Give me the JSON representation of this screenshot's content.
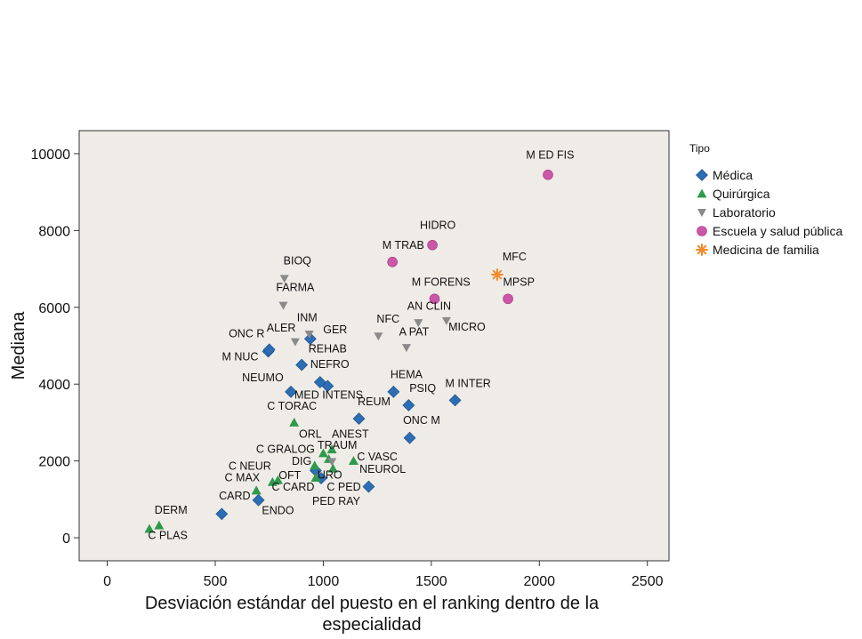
{
  "chart_data": {
    "type": "scatter",
    "xlabel_lines": [
      "Desviación estándar del puesto en el ranking dentro de la",
      "especialidad"
    ],
    "ylabel": "Mediana",
    "xlim": [
      -130,
      2600
    ],
    "ylim": [
      -600,
      10600
    ],
    "xticks": [
      0,
      500,
      1000,
      1500,
      2000,
      2500
    ],
    "yticks": [
      0,
      2000,
      4000,
      6000,
      8000,
      10000
    ],
    "grid": false,
    "legend_position": "right",
    "legend_title": "Tipo",
    "colors": {
      "plot_background": "#efece7",
      "Médica": "#2c6db3",
      "Quirúrgica": "#2e9a4c",
      "Laboratorio": "#8a8a8a",
      "Escuela y salud pública": "#cc56a8",
      "Medicina de familia": "#f08a2c"
    },
    "series": [
      {
        "name": "Médica",
        "marker": "diamond",
        "points": [
          {
            "label": "CARD",
            "x": 530,
            "y": 620
          },
          {
            "label": "ENDO",
            "x": 700,
            "y": 980
          },
          {
            "label": "M NUC",
            "x": 745,
            "y": 4850
          },
          {
            "label": "ONC R",
            "x": 750,
            "y": 4900
          },
          {
            "label": "NEUMO",
            "x": 850,
            "y": 3800
          },
          {
            "label": "NEFRO",
            "x": 900,
            "y": 4500
          },
          {
            "label": "GER",
            "x": 940,
            "y": 5180
          },
          {
            "label": "REHAB",
            "x": 985,
            "y": 4050
          },
          {
            "label": "MED INTENS",
            "x": 1020,
            "y": 3950
          },
          {
            "label": "REUM",
            "x": 1165,
            "y": 3100
          },
          {
            "label": "HEMA",
            "x": 1325,
            "y": 3800
          },
          {
            "label": "PSIQ",
            "x": 1395,
            "y": 3450
          },
          {
            "label": "M INTER",
            "x": 1610,
            "y": 3580
          },
          {
            "label": "ONC M",
            "x": 1400,
            "y": 2600
          },
          {
            "label": "NEUROL",
            "x": 1210,
            "y": 1330
          },
          {
            "label": "DIG",
            "x": 965,
            "y": 1750
          },
          {
            "label": "URO",
            "x": 990,
            "y": 1550
          }
        ]
      },
      {
        "name": "Quirúrgica",
        "marker": "triangle",
        "points": [
          {
            "label": "C PLAS",
            "x": 195,
            "y": 230
          },
          {
            "label": "DERM",
            "x": 240,
            "y": 320
          },
          {
            "label": "C MAX",
            "x": 690,
            "y": 1230
          },
          {
            "label": "C NEUR",
            "x": 765,
            "y": 1450
          },
          {
            "label": "OFT",
            "x": 790,
            "y": 1500
          },
          {
            "label": "C TORAC",
            "x": 865,
            "y": 3000
          },
          {
            "label": "C GRALOG",
            "x": 960,
            "y": 1880
          },
          {
            "label": "C CARD",
            "x": 965,
            "y": 1560
          },
          {
            "label": "ORL",
            "x": 1000,
            "y": 2200
          },
          {
            "label": "ANEST",
            "x": 1025,
            "y": 2050
          },
          {
            "label": "TRAUM",
            "x": 1040,
            "y": 2300
          },
          {
            "label": "C PED",
            "x": 1045,
            "y": 1800
          },
          {
            "label": "C VASC",
            "x": 1140,
            "y": 2000
          }
        ]
      },
      {
        "name": "Laboratorio",
        "marker": "inverted-triangle",
        "points": [
          {
            "label": "BIOQ",
            "x": 820,
            "y": 6750
          },
          {
            "label": "FARMA",
            "x": 815,
            "y": 6050
          },
          {
            "label": "ALER",
            "x": 870,
            "y": 5100
          },
          {
            "label": "INM",
            "x": 935,
            "y": 5300
          },
          {
            "label": "NFC",
            "x": 1255,
            "y": 5250
          },
          {
            "label": "AN CLIN",
            "x": 1440,
            "y": 5600
          },
          {
            "label": "A PAT",
            "x": 1385,
            "y": 4950
          },
          {
            "label": "MICRO",
            "x": 1570,
            "y": 5650
          },
          {
            "label": "PED RAY",
            "x": 1040,
            "y": 1980
          }
        ]
      },
      {
        "name": "Escuela y salud pública",
        "marker": "circle",
        "points": [
          {
            "label": "M ED FIS",
            "x": 2040,
            "y": 9450
          },
          {
            "label": "HIDRO",
            "x": 1505,
            "y": 7620
          },
          {
            "label": "M  TRAB",
            "x": 1320,
            "y": 7180
          },
          {
            "label": "M FORENS",
            "x": 1515,
            "y": 6220
          },
          {
            "label": "MPSP",
            "x": 1855,
            "y": 6220
          }
        ]
      },
      {
        "name": "Medicina de familia",
        "marker": "asterisk",
        "points": [
          {
            "label": "MFC",
            "x": 1805,
            "y": 6850
          }
        ]
      }
    ],
    "labels": [
      {
        "text": "M ED FIS",
        "x": 2050,
        "y": 9870
      },
      {
        "text": "HIDRO",
        "x": 1530,
        "y": 8040
      },
      {
        "text": "M  TRAB",
        "x": 1370,
        "y": 7520
      },
      {
        "text": "MFC",
        "x": 1885,
        "y": 7220
      },
      {
        "text": "M FORENS",
        "x": 1545,
        "y": 6560
      },
      {
        "text": "MPSP",
        "x": 1905,
        "y": 6560
      },
      {
        "text": "BIOQ",
        "x": 880,
        "y": 7120
      },
      {
        "text": "FARMA",
        "x": 870,
        "y": 6420
      },
      {
        "text": "AN CLIN",
        "x": 1490,
        "y": 5940
      },
      {
        "text": "INM",
        "x": 925,
        "y": 5640
      },
      {
        "text": "NFC",
        "x": 1300,
        "y": 5600
      },
      {
        "text": "GER",
        "x": 1055,
        "y": 5320
      },
      {
        "text": "ONC R",
        "x": 645,
        "y": 5220
      },
      {
        "text": "ALER",
        "x": 805,
        "y": 5370
      },
      {
        "text": "A PAT",
        "x": 1420,
        "y": 5270
      },
      {
        "text": "MICRO",
        "x": 1665,
        "y": 5390
      },
      {
        "text": "REHAB",
        "x": 1020,
        "y": 4830
      },
      {
        "text": "M NUC",
        "x": 615,
        "y": 4620
      },
      {
        "text": "NEFRO",
        "x": 1030,
        "y": 4420
      },
      {
        "text": "HEMA",
        "x": 1385,
        "y": 4160
      },
      {
        "text": "M INTER",
        "x": 1670,
        "y": 3920
      },
      {
        "text": "NEUMO",
        "x": 720,
        "y": 4080
      },
      {
        "text": "PSIQ",
        "x": 1460,
        "y": 3800
      },
      {
        "text": "MED INTENS",
        "x": 1025,
        "y": 3620
      },
      {
        "text": "REUM",
        "x": 1235,
        "y": 3450
      },
      {
        "text": "C TORAC",
        "x": 855,
        "y": 3330
      },
      {
        "text": "ONC M",
        "x": 1455,
        "y": 2960
      },
      {
        "text": "ORL",
        "x": 940,
        "y": 2610
      },
      {
        "text": "ANEST",
        "x": 1125,
        "y": 2610
      },
      {
        "text": "TRAUM",
        "x": 1065,
        "y": 2310
      },
      {
        "text": "C GRALOG",
        "x": 825,
        "y": 2210
      },
      {
        "text": "C VASC",
        "x": 1250,
        "y": 2010
      },
      {
        "text": "DIG",
        "x": 900,
        "y": 1900
      },
      {
        "text": "NEUROL",
        "x": 1275,
        "y": 1690
      },
      {
        "text": "C NEUR",
        "x": 660,
        "y": 1770
      },
      {
        "text": "URO",
        "x": 1030,
        "y": 1540
      },
      {
        "text": "C MAX",
        "x": 625,
        "y": 1470
      },
      {
        "text": "OFT",
        "x": 845,
        "y": 1530
      },
      {
        "text": "C CARD",
        "x": 860,
        "y": 1230
      },
      {
        "text": "C PED",
        "x": 1095,
        "y": 1230
      },
      {
        "text": "CARD",
        "x": 590,
        "y": 1000
      },
      {
        "text": "PED RAY",
        "x": 1060,
        "y": 860
      },
      {
        "text": "ENDO",
        "x": 790,
        "y": 620
      },
      {
        "text": "DERM",
        "x": 295,
        "y": 630
      },
      {
        "text": "C PLAS",
        "x": 280,
        "y": -30
      }
    ]
  }
}
